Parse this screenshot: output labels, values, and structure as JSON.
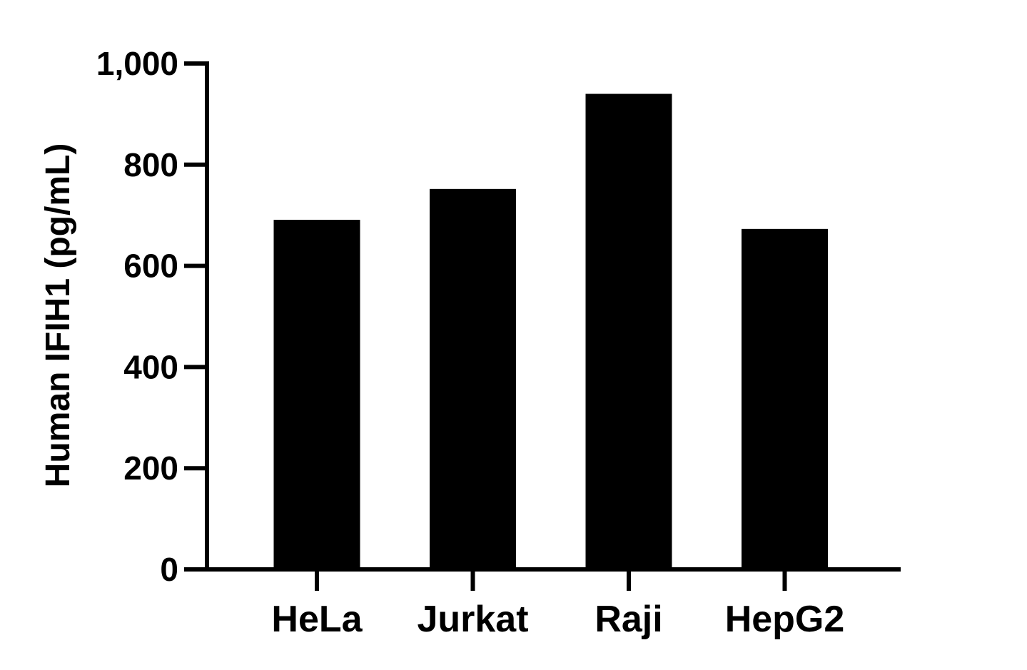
{
  "chart_data": {
    "type": "bar",
    "categories": [
      "HeLa",
      "Jurkat",
      "Raji",
      "HepG2"
    ],
    "values": [
      691,
      752,
      940,
      673
    ],
    "title": "",
    "xlabel": "",
    "ylabel": "Human IFIH1 (pg/mL)",
    "ylim": [
      0,
      1000
    ],
    "yticks": [
      0,
      200,
      400,
      600,
      800,
      1000
    ],
    "ytick_labels": [
      "0",
      "200",
      "400",
      "600",
      "800",
      "1,000"
    ],
    "grid": false,
    "legend": "none",
    "bar_color": "#000000"
  }
}
